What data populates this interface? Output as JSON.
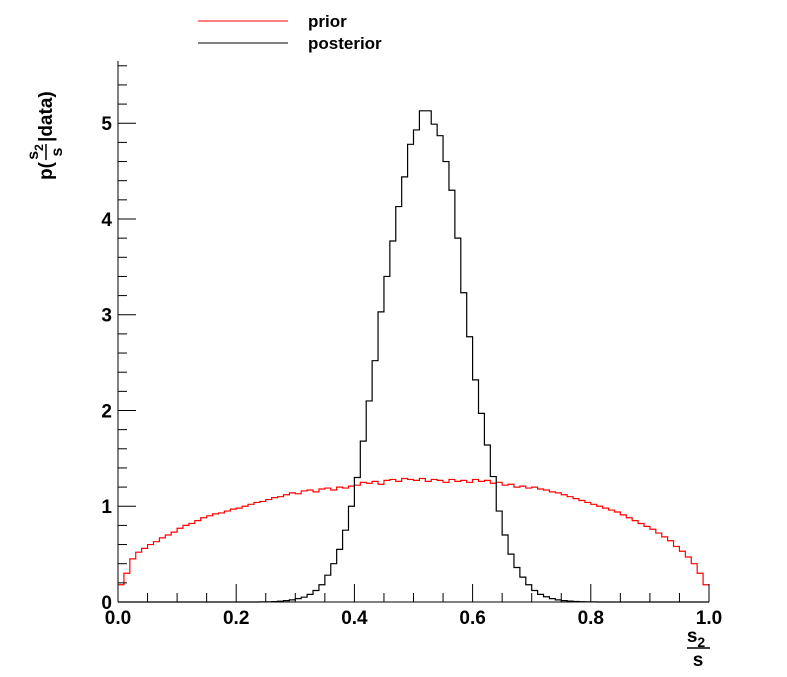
{
  "chart_data": {
    "type": "histogram",
    "xlim": [
      0.0,
      1.0
    ],
    "ylim": [
      0,
      5.65
    ],
    "bins": 100,
    "x_ticks": [
      "0.0",
      "0.2",
      "0.4",
      "0.6",
      "0.8",
      "1.0"
    ],
    "x_tick_values": [
      0.0,
      0.2,
      0.4,
      0.6,
      0.8,
      1.0
    ],
    "y_ticks": [
      "0",
      "1",
      "2",
      "3",
      "4",
      "5"
    ],
    "y_tick_values": [
      0,
      1,
      2,
      3,
      4,
      5
    ],
    "xlabel": {
      "num_base": "s",
      "num_sub": "2",
      "den": "s"
    },
    "ylabel": {
      "pre": "p(",
      "num_base": "s",
      "num_sub": "2",
      "den": "s",
      "post": "|data)"
    },
    "legend": {
      "placement": "top-left, above plot",
      "entries": [
        "prior",
        "posterior"
      ]
    },
    "grid": false,
    "series": [
      {
        "name": "prior",
        "color": "#ff0000",
        "values": [
          0.18,
          0.3,
          0.45,
          0.52,
          0.56,
          0.6,
          0.63,
          0.67,
          0.7,
          0.73,
          0.77,
          0.8,
          0.82,
          0.85,
          0.88,
          0.9,
          0.92,
          0.93,
          0.95,
          0.97,
          0.98,
          1.0,
          1.02,
          1.04,
          1.05,
          1.07,
          1.09,
          1.1,
          1.12,
          1.14,
          1.13,
          1.16,
          1.17,
          1.15,
          1.18,
          1.19,
          1.17,
          1.2,
          1.19,
          1.21,
          1.22,
          1.25,
          1.24,
          1.26,
          1.23,
          1.27,
          1.28,
          1.26,
          1.29,
          1.28,
          1.27,
          1.29,
          1.26,
          1.28,
          1.27,
          1.25,
          1.28,
          1.26,
          1.27,
          1.25,
          1.28,
          1.26,
          1.27,
          1.24,
          1.25,
          1.22,
          1.23,
          1.2,
          1.21,
          1.19,
          1.2,
          1.18,
          1.17,
          1.15,
          1.14,
          1.12,
          1.1,
          1.08,
          1.06,
          1.04,
          1.02,
          1.0,
          0.98,
          0.96,
          0.94,
          0.91,
          0.88,
          0.85,
          0.82,
          0.79,
          0.76,
          0.72,
          0.68,
          0.64,
          0.58,
          0.53,
          0.47,
          0.4,
          0.3,
          0.18
        ]
      },
      {
        "name": "posterior",
        "color": "#000000",
        "values": [
          0,
          0,
          0,
          0,
          0,
          0,
          0,
          0,
          0,
          0,
          0,
          0,
          0,
          0,
          0,
          0,
          0,
          0,
          0,
          0,
          0,
          0,
          0,
          0,
          0.001,
          0.002,
          0.004,
          0.008,
          0.014,
          0.022,
          0.035,
          0.05,
          0.08,
          0.12,
          0.18,
          0.28,
          0.4,
          0.55,
          0.75,
          1.0,
          1.3,
          1.68,
          2.1,
          2.52,
          3.03,
          3.4,
          3.77,
          4.13,
          4.44,
          4.78,
          4.93,
          5.13,
          5.13,
          4.99,
          4.87,
          4.6,
          4.3,
          3.8,
          3.23,
          2.77,
          2.32,
          1.97,
          1.64,
          1.31,
          0.95,
          0.7,
          0.5,
          0.36,
          0.26,
          0.18,
          0.12,
          0.08,
          0.055,
          0.035,
          0.022,
          0.014,
          0.009,
          0.006,
          0.003,
          0.002,
          0.001,
          0,
          0,
          0,
          0,
          0,
          0,
          0,
          0,
          0,
          0,
          0,
          0,
          0,
          0,
          0,
          0,
          0,
          0,
          0
        ]
      }
    ]
  }
}
